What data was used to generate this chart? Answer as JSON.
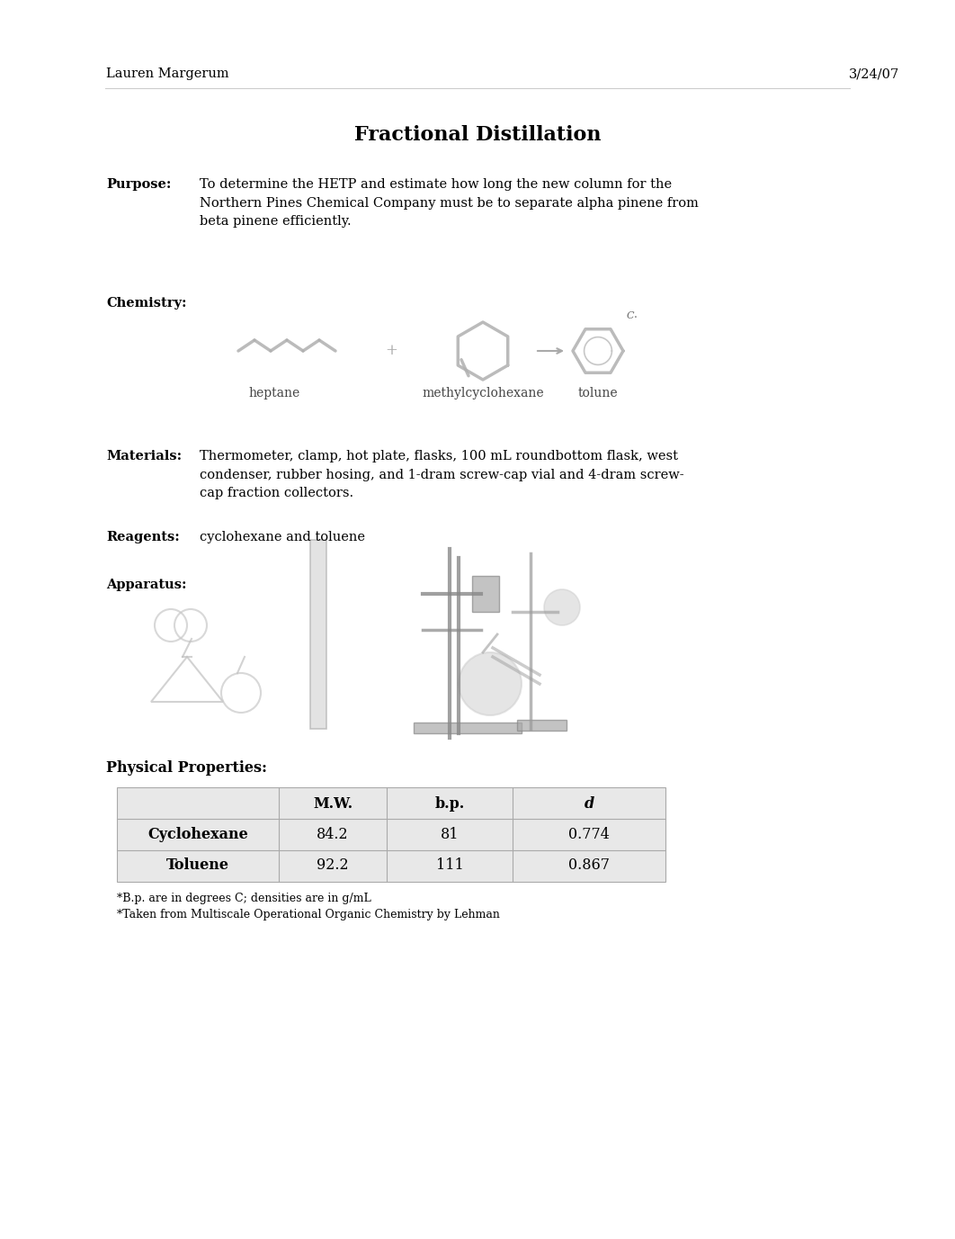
{
  "background_color": "#ffffff",
  "header_left": "Lauren Margerum",
  "header_right": "3/24/07",
  "title": "Fractional Distillation",
  "title_fontsize": 16,
  "header_fontsize": 10.5,
  "body_fontsize": 10.5,
  "sections": {
    "purpose_label": "Purpose:",
    "purpose_text": "To determine the HETP and estimate how long the new column for the\nNorthern Pines Chemical Company must be to separate alpha pinene from\nbeta pinene efficiently.",
    "chemistry_label": "Chemistry:",
    "chemistry_compounds": [
      "heptane",
      "methylcyclohexane",
      "tolune"
    ],
    "materials_label": "Materials:",
    "materials_text": "Thermometer, clamp, hot plate, flasks, 100 mL roundbottom flask, west\ncondenser, rubber hosing, and 1-dram screw-cap vial and 4-dram screw-\ncap fraction collectors.",
    "reagents_label": "Reagents:",
    "reagents_text": "cyclohexane and toluene",
    "apparatus_label": "Apparatus:",
    "physical_label": "Physical Properties:"
  },
  "table": {
    "headers": [
      "",
      "M.W.",
      "b.p.",
      "d"
    ],
    "rows": [
      [
        "Cyclohexane",
        "84.2",
        "81",
        "0.774"
      ],
      [
        "Toluene",
        "92.2",
        "111",
        "0.867"
      ]
    ],
    "footnotes": [
      "*B.p. are in degrees C; densities are in g/mL",
      "*Taken from Multiscale Operational Organic Chemistry by Lehman"
    ]
  }
}
